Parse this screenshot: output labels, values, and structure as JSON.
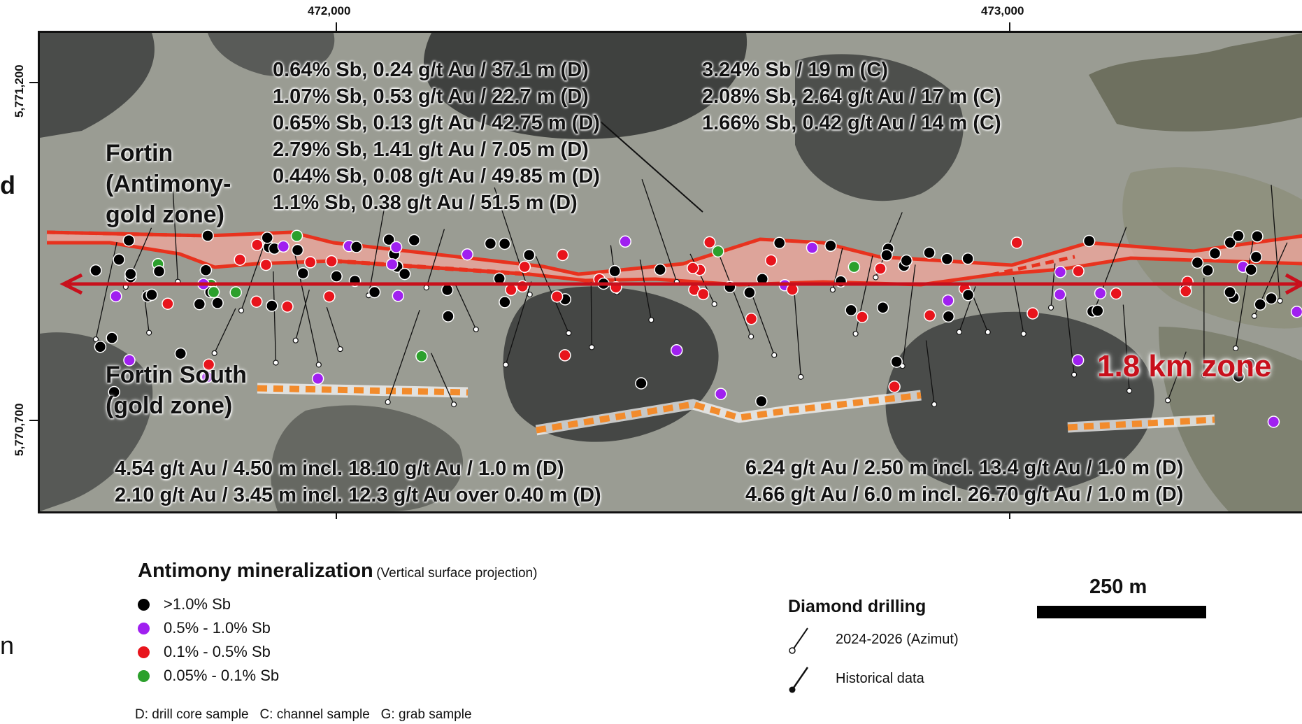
{
  "axes": {
    "x_ticks": [
      "472,000",
      "473,000"
    ],
    "y_ticks": [
      "5,771,200",
      "5,770,700"
    ]
  },
  "annotations": {
    "north_top": [
      "0.64% Sb, 0.24 g/t Au / 37.1 m (D)",
      "1.07% Sb, 0.53 g/t Au / 22.7 m (D)",
      "0.65% Sb, 0.13 g/t Au / 42.75 m (D)",
      "2.79% Sb, 1.41 g/t Au / 7.05 m (D)",
      "0.44% Sb, 0.08 g/t Au / 49.85 m (D)",
      "1.1% Sb, 0.38 g/t Au / 51.5 m (D)"
    ],
    "north_right": [
      "3.24% Sb / 19 m (C)",
      "2.08% Sb, 2.64 g/t Au / 17 m (C)",
      "1.66% Sb, 0.42 g/t Au / 14 m (C)"
    ],
    "south_left": [
      "4.54 g/t Au / 4.50 m incl. 18.10 g/t Au / 1.0 m (D)",
      "2.10 g/t Au / 3.45 m incl. 12.3 g/t Au over 0.40 m (D)"
    ],
    "south_right": [
      "6.24 g/t Au / 2.50 m incl. 13.4 g/t Au / 1.0 m (D)",
      "4.66 g/t Au / 6.0 m incl. 26.70 g/t Au / 1.0 m (D)"
    ]
  },
  "zones": {
    "fortin": [
      "Fortin",
      "(Antimony-",
      "gold zone)"
    ],
    "fortin_south": [
      "Fortin South",
      "(gold zone)"
    ],
    "extent_label": "1.8 km zone"
  },
  "edge_fragments": {
    "left_mid": "d",
    "left_low": "n"
  },
  "legend": {
    "title": "Antimony mineralization",
    "subtitle": "(Vertical surface projection)",
    "items": [
      {
        "label": ">1.0% Sb",
        "color": "#000000"
      },
      {
        "label": "0.5% - 1.0% Sb",
        "color": "#a020f0"
      },
      {
        "label": "0.1% - 0.5% Sb",
        "color": "#e8141c"
      },
      {
        "label": "0.05% - 0.1% Sb",
        "color": "#2ca02c"
      }
    ],
    "sample_note": "D: drill core sample   C: channel sample   G: grab sample"
  },
  "drilling": {
    "title": "Diamond drilling",
    "items": [
      {
        "label": "2024-2026 (Azimut)",
        "icon": "open-collar-drillhole-icon"
      },
      {
        "label": "Historical data",
        "icon": "filled-collar-drillhole-icon"
      }
    ]
  },
  "scale": {
    "label": "250 m"
  },
  "colors": {
    "zone_outline": "#e8321e",
    "zone_fill": "#f3a79c",
    "gold_trend": "#f28b2c",
    "extent_arrow": "#c8101c"
  }
}
